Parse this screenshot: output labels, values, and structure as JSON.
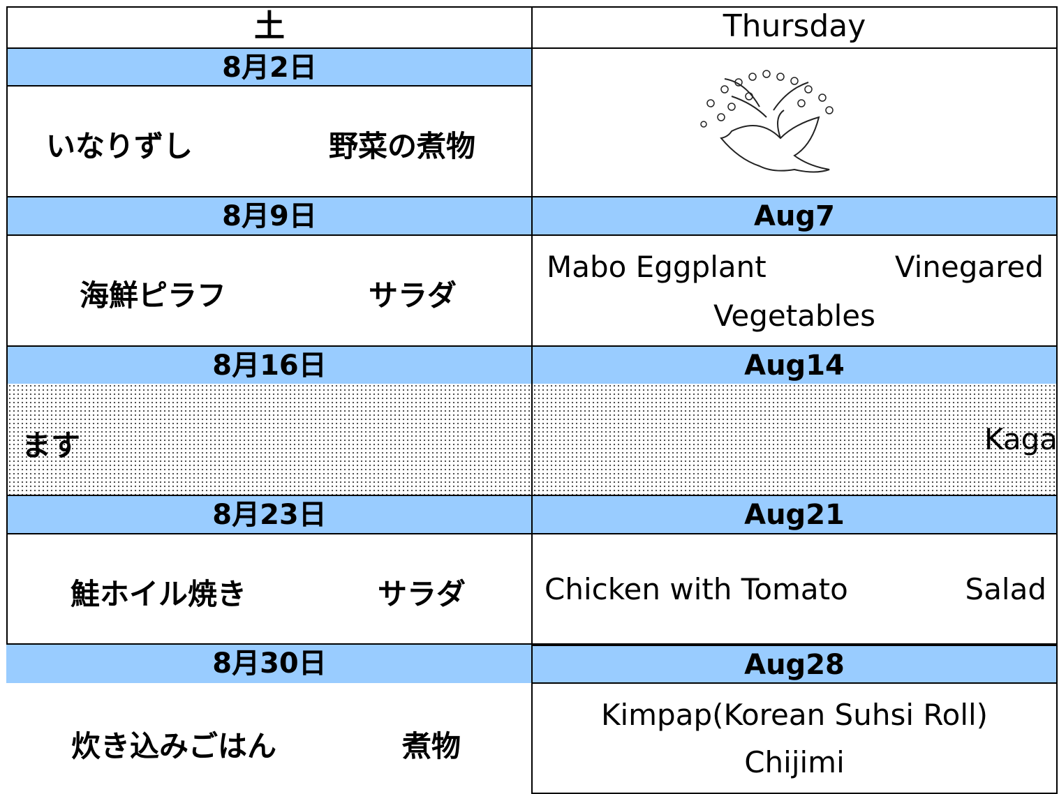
{
  "header": {
    "left": "土",
    "right": "Thursday"
  },
  "rows": [
    {
      "left_date": "8月2日",
      "left_items": [
        "いなりずし",
        "野菜の煮物"
      ]
    },
    {
      "left_date": "8月9日",
      "left_items": [
        "海鮮ピラフ",
        "サラダ"
      ],
      "right_date": "Aug7",
      "right_items": [
        "Mabo Eggplant",
        "Vinegared",
        "Vegetables"
      ]
    },
    {
      "left_date": "8月16日",
      "left_items": [
        "ます"
      ],
      "right_date": "Aug14",
      "right_items": [
        "Kaga"
      ]
    },
    {
      "left_date": "8月23日",
      "left_items": [
        "鮭ホイル焼き",
        "サラダ"
      ],
      "right_date": "Aug21",
      "right_items": [
        "Chicken with Tomato",
        "Salad"
      ]
    },
    {
      "left_date": "8月30日",
      "left_items": [
        "炊き込みごはん",
        "煮物"
      ],
      "right_date": "Aug28",
      "right_items": [
        "Kimpap(Korean Suhsi Roll)",
        "Chijimi"
      ]
    }
  ]
}
